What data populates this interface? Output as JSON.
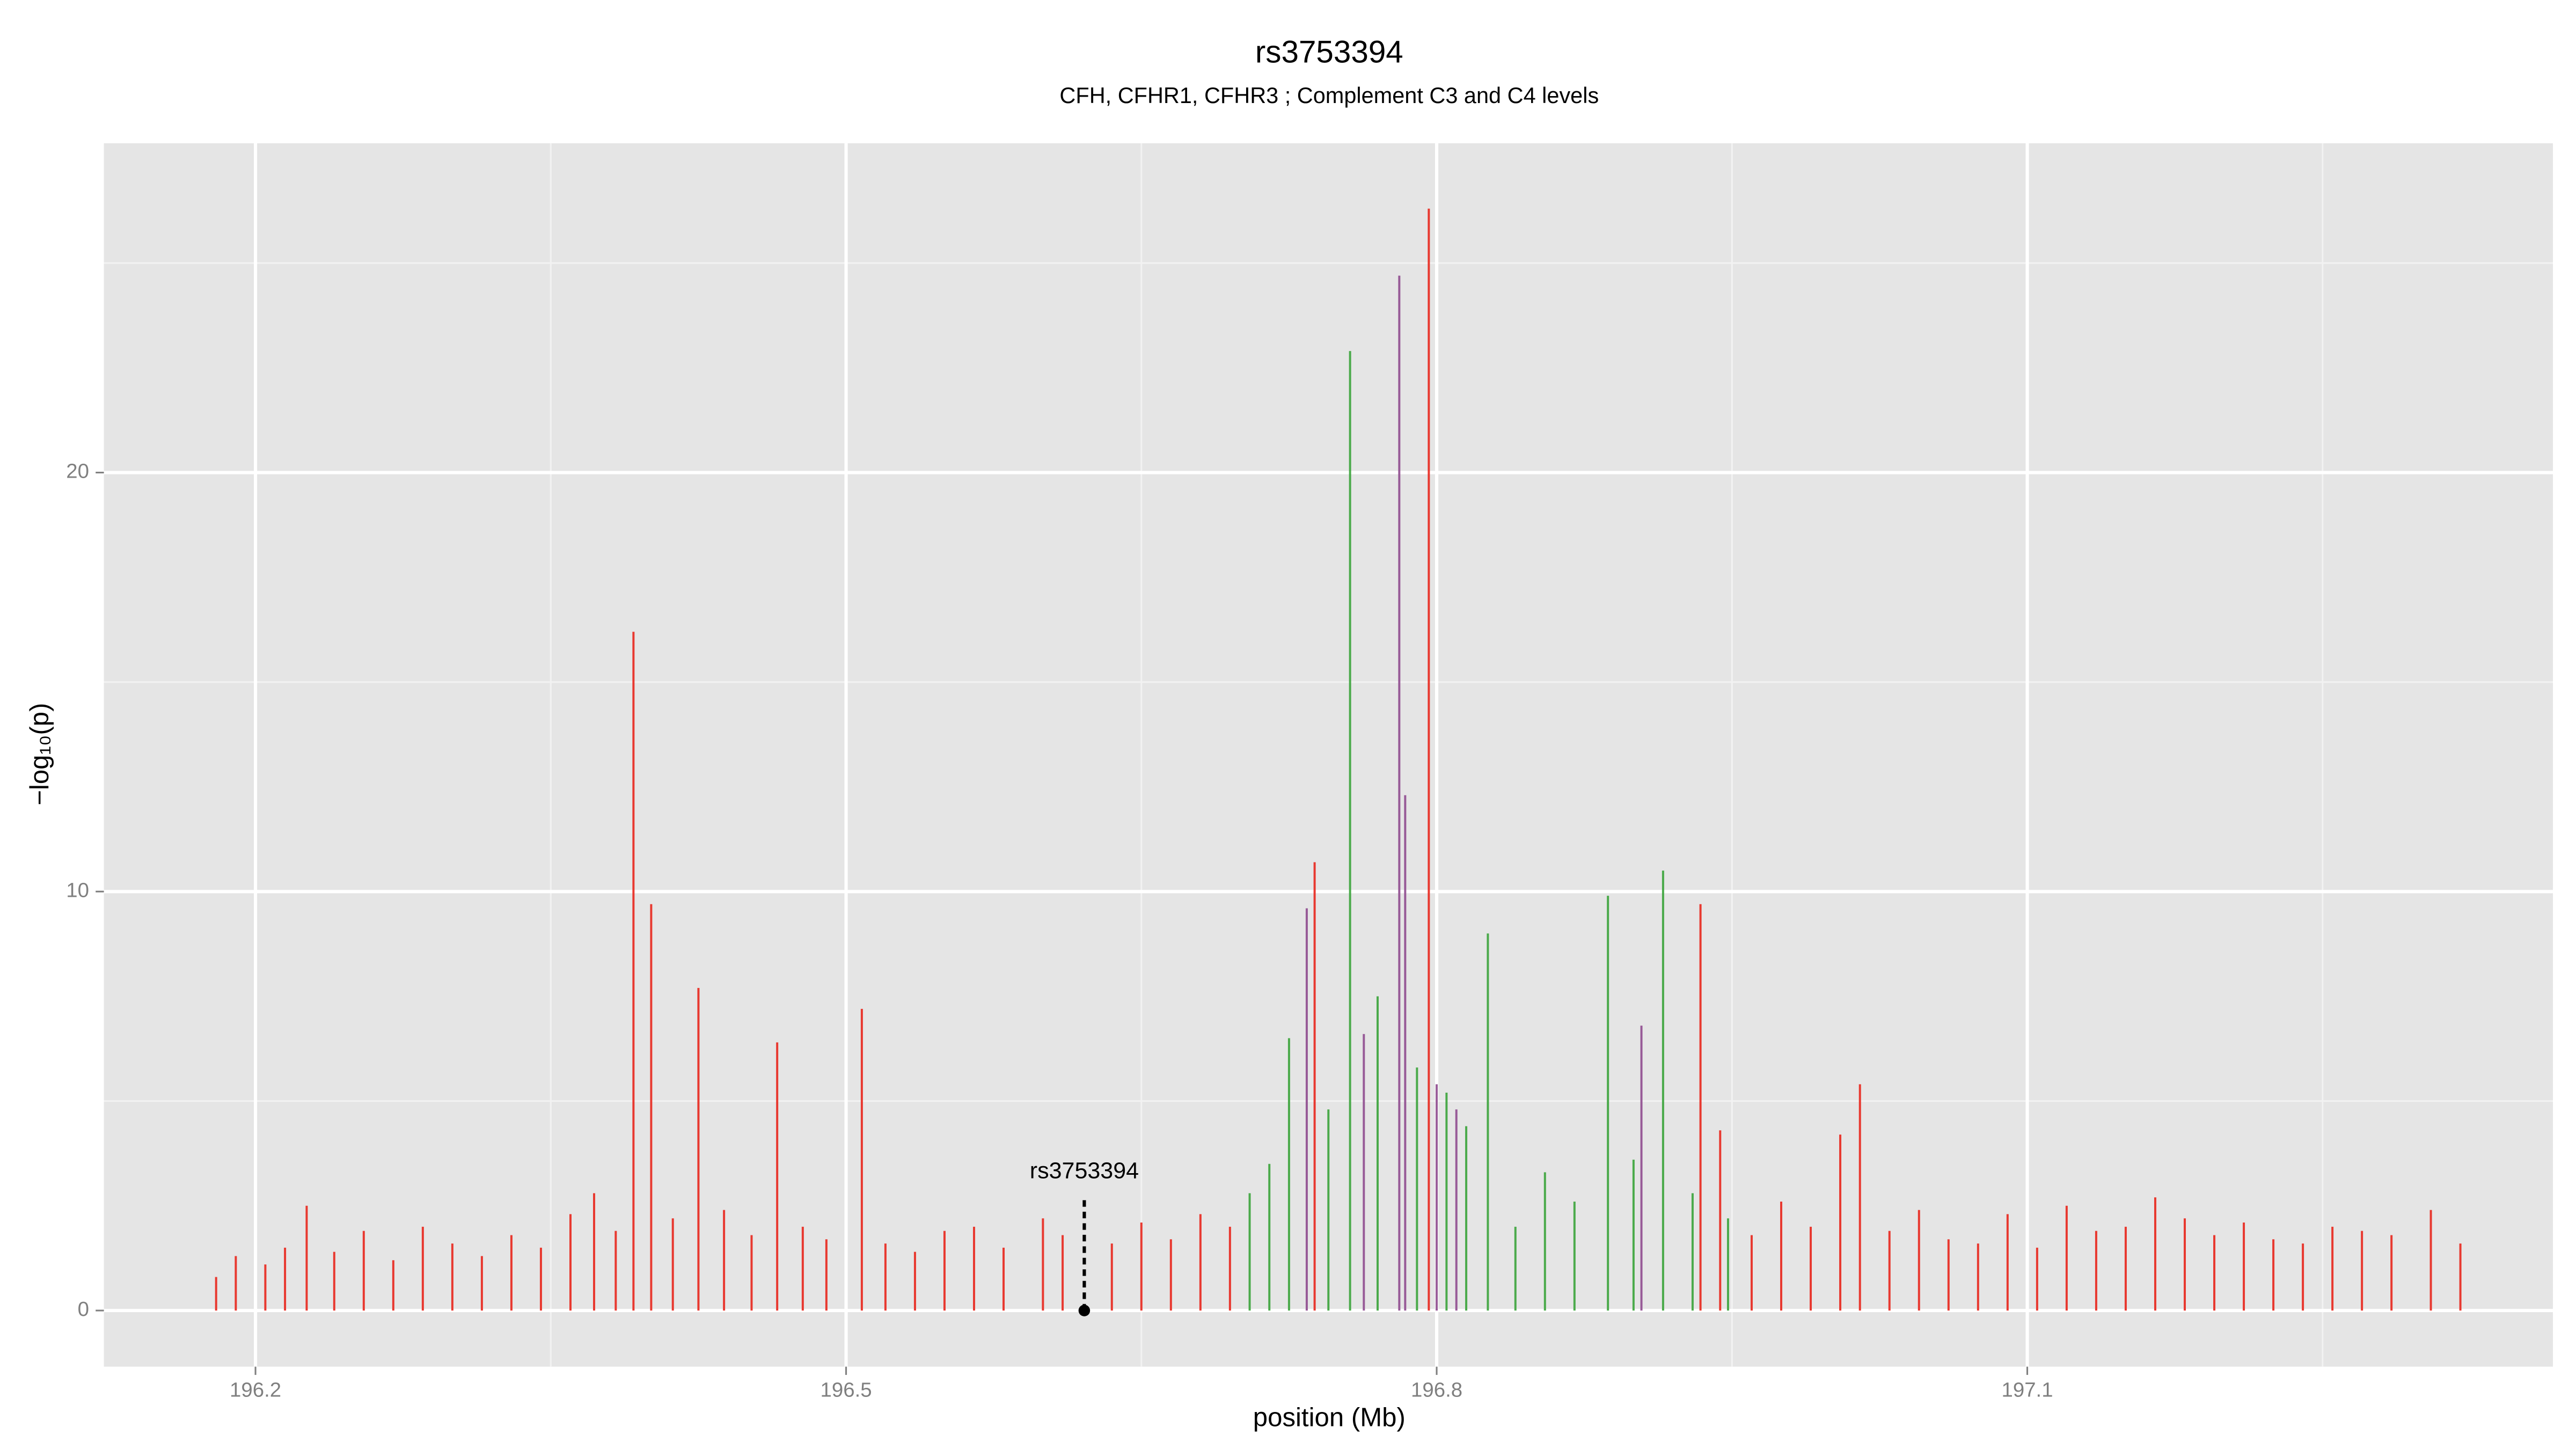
{
  "chart_data": {
    "type": "spike",
    "title": "rs3753394",
    "subtitle": "CFH, CFHR1, CFHR3 ; Complement C3 and C4 levels",
    "xlabel": "position (Mb)",
    "ylabel": "−log₁₀(p)",
    "xlim": [
      196.123,
      197.367
    ],
    "ylim": [
      -1.34,
      27.86
    ],
    "xticks": [
      196.2,
      196.5,
      196.8,
      197.1
    ],
    "yticks": [
      0,
      10,
      20
    ],
    "x_minor_ticks": [
      196.35,
      196.65,
      196.95,
      197.25
    ],
    "y_minor_ticks": [
      5,
      15,
      25
    ],
    "grid": true,
    "series": [
      {
        "color": "#e8261c",
        "x": [
          196.18,
          196.19,
          196.205,
          196.215,
          196.226,
          196.24,
          196.255,
          196.27,
          196.285,
          196.3,
          196.315,
          196.33,
          196.345,
          196.36,
          196.372,
          196.383,
          196.392,
          196.401,
          196.412,
          196.425,
          196.438,
          196.452,
          196.465,
          196.478,
          196.49,
          196.508,
          196.52,
          196.535,
          196.55,
          196.565,
          196.58,
          196.6,
          196.61,
          196.635,
          196.65,
          196.665,
          196.68,
          196.695,
          196.738,
          196.796,
          196.934,
          196.944,
          196.96,
          196.975,
          196.99,
          197.005,
          197.015,
          197.03,
          197.045,
          197.06,
          197.075,
          197.09,
          197.105,
          197.12,
          197.135,
          197.15,
          197.165,
          197.18,
          197.195,
          197.21,
          197.225,
          197.24,
          197.255,
          197.27,
          197.285,
          197.305,
          197.32
        ],
        "values": [
          0.8,
          1.3,
          1.1,
          1.5,
          2.5,
          1.4,
          1.9,
          1.2,
          2.0,
          1.6,
          1.3,
          1.8,
          1.5,
          2.3,
          2.8,
          1.9,
          16.2,
          9.7,
          2.2,
          7.7,
          2.4,
          1.8,
          6.4,
          2.0,
          1.7,
          7.2,
          1.6,
          1.4,
          1.9,
          2.0,
          1.5,
          2.2,
          1.8,
          1.6,
          2.1,
          1.7,
          2.3,
          2.0,
          10.7,
          26.3,
          9.7,
          4.3,
          1.8,
          2.6,
          2.0,
          4.2,
          5.4,
          1.9,
          2.4,
          1.7,
          1.6,
          2.3,
          1.5,
          2.5,
          1.9,
          2.0,
          2.7,
          2.2,
          1.8,
          2.1,
          1.7,
          1.6,
          2.0,
          1.9,
          1.8,
          2.4,
          1.6
        ]
      },
      {
        "color": "#3aa33a",
        "x": [
          196.705,
          196.715,
          196.725,
          196.745,
          196.756,
          196.77,
          196.79,
          196.805,
          196.815,
          196.826,
          196.84,
          196.855,
          196.87,
          196.887,
          196.9,
          196.915,
          196.93,
          196.948
        ],
        "values": [
          2.8,
          3.5,
          6.5,
          4.8,
          22.9,
          7.5,
          5.8,
          5.2,
          4.4,
          9.0,
          2.0,
          3.3,
          2.6,
          9.9,
          3.6,
          10.5,
          2.8,
          2.2
        ]
      },
      {
        "color": "#8e4a8e",
        "x": [
          196.734,
          196.763,
          196.781,
          196.784,
          196.8,
          196.81,
          196.904
        ],
        "values": [
          9.6,
          6.6,
          24.7,
          12.3,
          5.4,
          4.8,
          6.8
        ]
      }
    ],
    "annotations": [
      {
        "text": "rs3753394",
        "x": 196.621,
        "y": 0
      }
    ]
  }
}
